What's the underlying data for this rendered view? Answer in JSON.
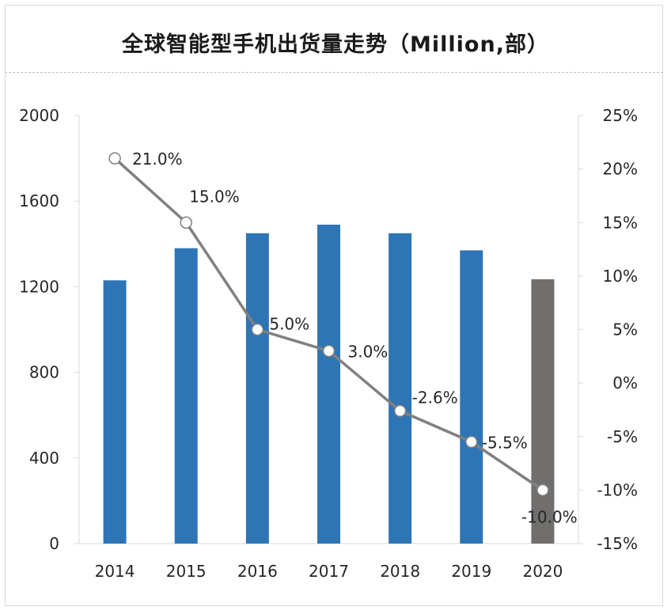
{
  "chart_data": {
    "type": "bar+line",
    "title": "全球智能型手机出货量走势（Million,部）",
    "categories": [
      "2014",
      "2015",
      "2016",
      "2017",
      "2018",
      "2019",
      "2020"
    ],
    "series": [
      {
        "kind": "bar",
        "axis": "left",
        "values": [
          1230,
          1380,
          1450,
          1490,
          1450,
          1370,
          1235
        ],
        "colors": [
          "#2e75b6",
          "#2e75b6",
          "#2e75b6",
          "#2e75b6",
          "#2e75b6",
          "#2e75b6",
          "#716f6d"
        ]
      },
      {
        "kind": "line",
        "axis": "right",
        "values": [
          21.0,
          15.0,
          5.0,
          3.0,
          -2.6,
          -5.5,
          -10.0
        ],
        "labels": [
          "21.0%",
          "15.0%",
          "5.0%",
          "3.0%",
          "-2.6%",
          "-5.5%",
          "-10.0%"
        ],
        "color": "#808080"
      }
    ],
    "y_left": {
      "lim": [
        0,
        2000
      ],
      "ticks": [
        "0",
        "400",
        "800",
        "1200",
        "1600",
        "2000"
      ]
    },
    "y_right": {
      "lim": [
        -15,
        25
      ],
      "ticks": [
        "-15%",
        "-10%",
        "-5%",
        "0%",
        "5%",
        "10%",
        "15%",
        "20%",
        "25%"
      ]
    },
    "grid": false,
    "legend": "none"
  }
}
